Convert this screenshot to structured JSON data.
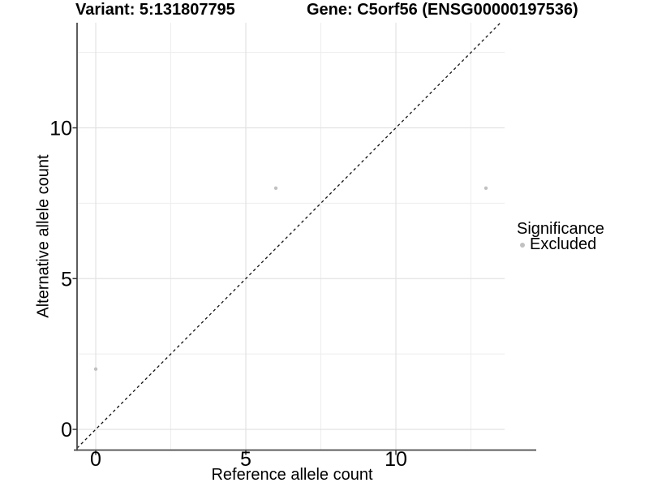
{
  "chart_data": {
    "type": "scatter",
    "title_left": "Variant: 5:131807795",
    "title_right": "Gene: C5orf56 (ENSG00000197536)",
    "xlabel": "Reference allele count",
    "ylabel": "Alternative allele count",
    "xlim": [
      -0.65,
      13.65
    ],
    "ylim": [
      -0.7,
      13.5
    ],
    "x_ticks": [
      0,
      5,
      10
    ],
    "y_ticks": [
      0,
      5,
      10
    ],
    "x_minor_ticks": [
      2.5,
      7.5,
      12.5
    ],
    "y_minor_ticks": [
      2.5,
      7.5,
      12.5
    ],
    "grid": "major+minor",
    "series": [
      {
        "name": "Excluded",
        "color": "#c1c1c1",
        "points": [
          {
            "x": 0,
            "y": 2
          },
          {
            "x": 6,
            "y": 8
          },
          {
            "x": 13,
            "y": 8
          }
        ]
      }
    ],
    "reference_line": {
      "type": "identity",
      "style": "dashed",
      "color": "#111111"
    },
    "legend": {
      "title": "Significance",
      "position": "right",
      "items": [
        {
          "label": "Excluded",
          "color": "#c1c1c1"
        }
      ]
    },
    "colors": {
      "background": "#ffffff",
      "grid_major": "#e2e2e2",
      "grid_minor": "#ededed",
      "axis_line": "#4a4a4a",
      "tick_mark": "#333333",
      "text": "#000000"
    }
  }
}
